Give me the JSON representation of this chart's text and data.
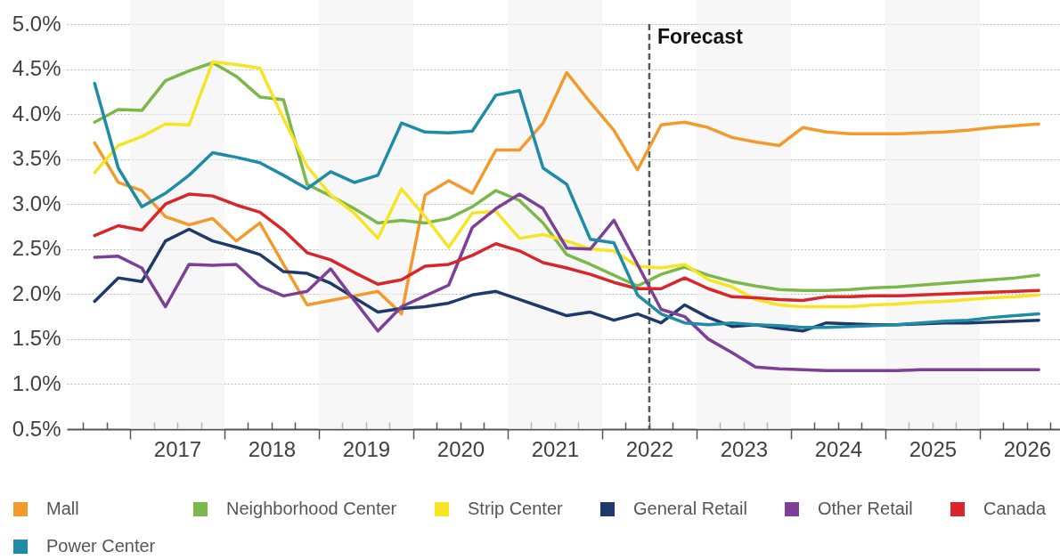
{
  "chart_data": {
    "type": "line",
    "x": [
      2016.625,
      2016.875,
      2017.125,
      2017.375,
      2017.625,
      2017.875,
      2018.125,
      2018.375,
      2018.625,
      2018.875,
      2019.125,
      2019.375,
      2019.625,
      2019.875,
      2020.125,
      2020.375,
      2020.625,
      2020.875,
      2021.125,
      2021.375,
      2021.625,
      2021.875,
      2022.125,
      2022.375,
      2022.625,
      2022.875,
      2023.125,
      2023.375,
      2023.625,
      2023.875,
      2024.125,
      2024.375,
      2024.625,
      2024.875,
      2025.125,
      2025.375,
      2025.625,
      2025.875,
      2026.125,
      2026.375,
      2026.625
    ],
    "series": [
      {
        "name": "Mall",
        "color": "#f39a2c",
        "values": [
          3.68,
          3.24,
          3.15,
          2.86,
          2.77,
          2.84,
          2.59,
          2.79,
          2.33,
          1.88,
          1.93,
          1.98,
          2.03,
          1.78,
          3.1,
          3.26,
          3.12,
          3.6,
          3.6,
          3.9,
          4.46,
          4.13,
          3.82,
          3.38,
          3.88,
          3.91,
          3.85,
          3.74,
          3.69,
          3.65,
          3.85,
          3.8,
          3.78,
          3.78,
          3.78,
          3.79,
          3.8,
          3.82,
          3.85,
          3.87,
          3.89
        ]
      },
      {
        "name": "Neighborhood Center",
        "color": "#7bb84a",
        "values": [
          3.91,
          4.05,
          4.04,
          4.37,
          4.48,
          4.57,
          4.42,
          4.19,
          4.16,
          3.22,
          3.09,
          2.95,
          2.79,
          2.82,
          2.79,
          2.84,
          2.97,
          3.15,
          3.04,
          2.79,
          2.44,
          2.33,
          2.21,
          2.09,
          2.22,
          2.3,
          2.21,
          2.14,
          2.09,
          2.05,
          2.04,
          2.04,
          2.05,
          2.07,
          2.08,
          2.1,
          2.12,
          2.14,
          2.16,
          2.18,
          2.21
        ]
      },
      {
        "name": "Strip Center",
        "color": "#f6e425",
        "values": [
          3.35,
          3.65,
          3.75,
          3.89,
          3.88,
          4.58,
          4.55,
          4.51,
          3.95,
          3.42,
          3.1,
          2.9,
          2.62,
          3.17,
          2.86,
          2.52,
          2.9,
          2.92,
          2.62,
          2.66,
          2.59,
          2.5,
          2.48,
          2.31,
          2.29,
          2.33,
          2.16,
          2.08,
          1.94,
          1.88,
          1.86,
          1.86,
          1.86,
          1.88,
          1.89,
          1.91,
          1.92,
          1.94,
          1.96,
          1.97,
          1.99
        ]
      },
      {
        "name": "General Retail",
        "color": "#1d3a6b",
        "values": [
          1.92,
          2.18,
          2.14,
          2.59,
          2.72,
          2.59,
          2.52,
          2.44,
          2.25,
          2.23,
          2.12,
          1.96,
          1.8,
          1.84,
          1.86,
          1.9,
          1.99,
          2.03,
          1.94,
          1.85,
          1.76,
          1.8,
          1.71,
          1.78,
          1.68,
          1.88,
          1.74,
          1.64,
          1.66,
          1.62,
          1.59,
          1.68,
          1.67,
          1.66,
          1.66,
          1.67,
          1.68,
          1.68,
          1.69,
          1.7,
          1.71
        ]
      },
      {
        "name": "Other Retail",
        "color": "#7e3f98",
        "values": [
          2.41,
          2.42,
          2.29,
          1.86,
          2.33,
          2.32,
          2.33,
          2.09,
          1.98,
          2.03,
          2.28,
          1.93,
          1.59,
          1.86,
          1.98,
          2.1,
          2.74,
          2.95,
          3.11,
          2.95,
          2.51,
          2.5,
          2.82,
          2.33,
          1.83,
          1.75,
          1.5,
          1.35,
          1.19,
          1.17,
          1.16,
          1.15,
          1.15,
          1.15,
          1.15,
          1.16,
          1.16,
          1.16,
          1.16,
          1.16,
          1.16
        ]
      },
      {
        "name": "Canada",
        "color": "#d9262a",
        "values": [
          2.65,
          2.76,
          2.71,
          3.0,
          3.11,
          3.09,
          2.99,
          2.91,
          2.71,
          2.46,
          2.38,
          2.24,
          2.11,
          2.16,
          2.31,
          2.33,
          2.43,
          2.56,
          2.48,
          2.35,
          2.29,
          2.22,
          2.13,
          2.06,
          2.06,
          2.18,
          2.06,
          1.97,
          1.96,
          1.94,
          1.93,
          1.97,
          1.97,
          1.98,
          1.98,
          1.99,
          2.0,
          2.01,
          2.02,
          2.03,
          2.04
        ]
      },
      {
        "name": "Power Center",
        "color": "#1f8ca7",
        "values": [
          4.34,
          3.4,
          2.97,
          3.12,
          3.32,
          3.57,
          3.52,
          3.46,
          3.32,
          3.17,
          3.36,
          3.24,
          3.32,
          3.9,
          3.8,
          3.79,
          3.81,
          4.21,
          4.26,
          3.4,
          3.22,
          2.61,
          2.57,
          1.99,
          1.78,
          1.68,
          1.66,
          1.68,
          1.66,
          1.65,
          1.63,
          1.63,
          1.64,
          1.65,
          1.66,
          1.68,
          1.7,
          1.71,
          1.74,
          1.76,
          1.78
        ]
      }
    ],
    "xlim": [
      2016.33,
      2026.85
    ],
    "xticks": [
      {
        "value": 2016.5,
        "label": null
      },
      {
        "value": 2016.75,
        "label": null
      },
      {
        "value": 2017,
        "label": null
      },
      {
        "value": 2017.25,
        "label": null
      },
      {
        "value": 2017.5,
        "label": "2017"
      },
      {
        "value": 2017.75,
        "label": null
      },
      {
        "value": 2018,
        "label": null
      },
      {
        "value": 2018.25,
        "label": null
      },
      {
        "value": 2018.5,
        "label": "2018"
      },
      {
        "value": 2018.75,
        "label": null
      },
      {
        "value": 2019,
        "label": null
      },
      {
        "value": 2019.25,
        "label": null
      },
      {
        "value": 2019.5,
        "label": "2019"
      },
      {
        "value": 2019.75,
        "label": null
      },
      {
        "value": 2020,
        "label": null
      },
      {
        "value": 2020.25,
        "label": null
      },
      {
        "value": 2020.5,
        "label": "2020"
      },
      {
        "value": 2020.75,
        "label": null
      },
      {
        "value": 2021,
        "label": null
      },
      {
        "value": 2021.25,
        "label": null
      },
      {
        "value": 2021.5,
        "label": "2021"
      },
      {
        "value": 2021.75,
        "label": null
      },
      {
        "value": 2022,
        "label": null
      },
      {
        "value": 2022.25,
        "label": null
      },
      {
        "value": 2022.5,
        "label": "2022"
      },
      {
        "value": 2022.75,
        "label": null
      },
      {
        "value": 2023,
        "label": null
      },
      {
        "value": 2023.25,
        "label": null
      },
      {
        "value": 2023.5,
        "label": "2023"
      },
      {
        "value": 2023.75,
        "label": null
      },
      {
        "value": 2024,
        "label": null
      },
      {
        "value": 2024.25,
        "label": null
      },
      {
        "value": 2024.5,
        "label": "2024"
      },
      {
        "value": 2024.75,
        "label": null
      },
      {
        "value": 2025,
        "label": null
      },
      {
        "value": 2025.25,
        "label": null
      },
      {
        "value": 2025.5,
        "label": "2025"
      },
      {
        "value": 2025.75,
        "label": null
      },
      {
        "value": 2026,
        "label": null
      },
      {
        "value": 2026.25,
        "label": null
      },
      {
        "value": 2026.5,
        "label": "2026"
      },
      {
        "value": 2026.75,
        "label": null
      }
    ],
    "ylim": [
      0.5,
      5.0
    ],
    "yticks": [
      {
        "value": 0.5,
        "label": "0.5%"
      },
      {
        "value": 1,
        "label": "1.0%"
      },
      {
        "value": 1.5,
        "label": "1.5%"
      },
      {
        "value": 2,
        "label": "2.0%"
      },
      {
        "value": 2.5,
        "label": "2.5%"
      },
      {
        "value": 3,
        "label": "3.0%"
      },
      {
        "value": 3.5,
        "label": "3.5%"
      },
      {
        "value": 4,
        "label": "4.0%"
      },
      {
        "value": 4.5,
        "label": "4.5%"
      },
      {
        "value": 5,
        "label": "5.0%"
      }
    ],
    "grid": "y",
    "legend": "bottom",
    "bands": [
      {
        "axis": "x",
        "from": 2017,
        "to": 2018,
        "color": "#f2f2f2"
      },
      {
        "axis": "x",
        "from": 2019,
        "to": 2020,
        "color": "#f2f2f2"
      },
      {
        "axis": "x",
        "from": 2021,
        "to": 2022,
        "color": "#f2f2f2"
      },
      {
        "axis": "x",
        "from": 2023,
        "to": 2024,
        "color": "#f2f2f2"
      },
      {
        "axis": "x",
        "from": 2025,
        "to": 2026,
        "color": "#f2f2f2"
      }
    ],
    "ref_lines": [
      {
        "axis": "x",
        "value": 2022.5,
        "label": "Forecast",
        "color": "#555555",
        "line_style": "dashed"
      }
    ]
  }
}
